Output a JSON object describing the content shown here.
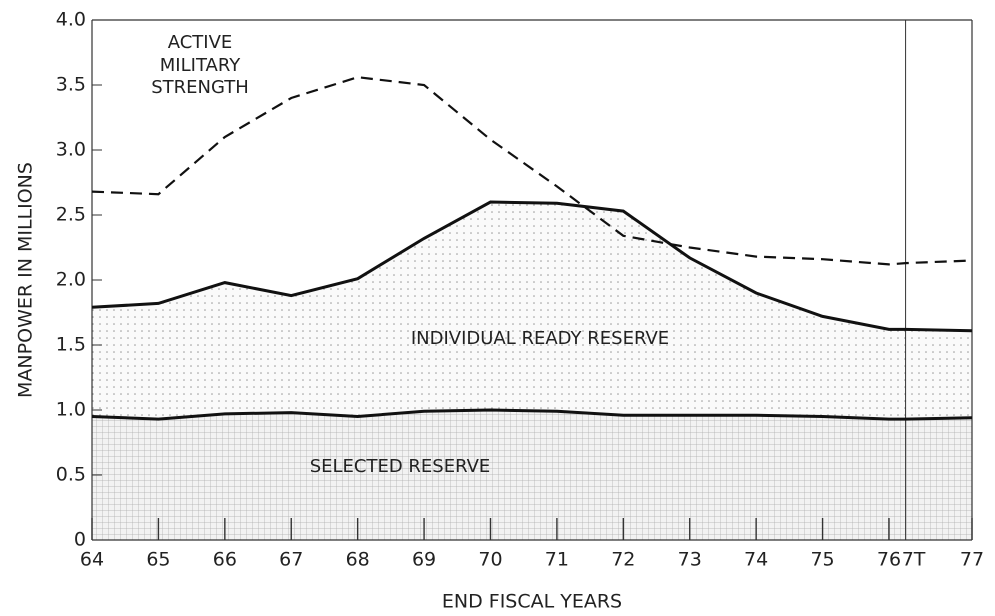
{
  "chart_data": {
    "type": "stacked_area_line",
    "ylabel": "MANPOWER IN MILLIONS",
    "xlabel": "END FISCAL YEARS",
    "x": [
      64,
      65,
      66,
      67,
      68,
      69,
      70,
      71,
      72,
      73,
      74,
      75,
      76,
      76.25,
      77.25
    ],
    "xlim": [
      64,
      77.25
    ],
    "xticks": [
      64,
      65,
      66,
      67,
      68,
      69,
      70,
      71,
      72,
      73,
      74,
      75,
      76,
      {
        "value": 76.25,
        "label": "7T"
      },
      {
        "value": 77.25,
        "label": "77"
      }
    ],
    "ylim": [
      0,
      4
    ],
    "yticks": [
      0,
      0.5,
      {
        "value": 1,
        "label": "1.0"
      },
      1.5,
      {
        "value": 2,
        "label": "2.0"
      },
      2.5,
      {
        "value": 3,
        "label": "3.0"
      },
      3.5,
      {
        "value": 4,
        "label": "4.0"
      }
    ],
    "series": [
      {
        "name": "SELECTED RESERVE",
        "kind": "stacked",
        "color": "#111111",
        "values": [
          0.95,
          0.93,
          0.97,
          0.98,
          0.95,
          0.99,
          1.0,
          0.99,
          0.96,
          0.96,
          0.96,
          0.95,
          0.93,
          0.93,
          0.94
        ]
      },
      {
        "name": "INDIVIDUAL READY RESERVE",
        "kind": "stacked",
        "color": "#111111",
        "values": [
          0.84,
          0.89,
          1.01,
          0.9,
          1.06,
          1.33,
          1.6,
          1.6,
          1.57,
          1.21,
          0.94,
          0.77,
          0.69,
          0.69,
          0.67
        ]
      },
      {
        "name": "ACTIVE MILITARY STRENGTH",
        "kind": "dashed",
        "color": "#111111",
        "values": [
          2.68,
          2.66,
          3.1,
          3.4,
          3.56,
          3.5,
          3.08,
          2.72,
          2.34,
          2.25,
          2.18,
          2.16,
          2.12,
          2.13,
          2.15
        ]
      }
    ]
  }
}
